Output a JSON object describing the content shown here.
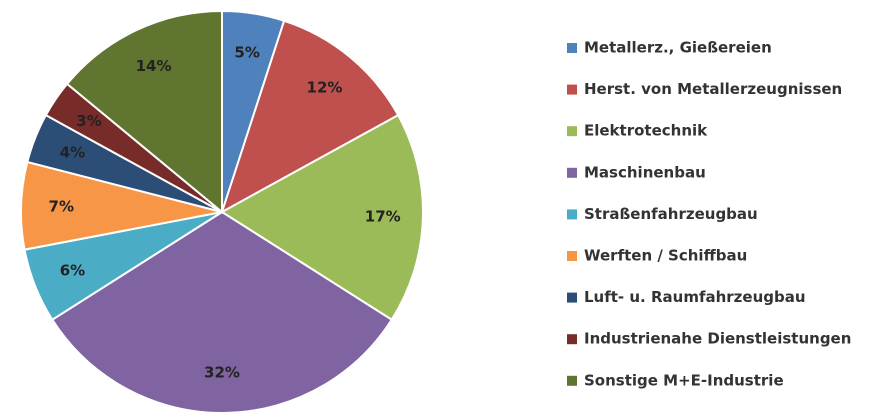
{
  "chart_data": {
    "type": "pie",
    "categories": [
      "Metallerz., Gießereien",
      "Herst. von Metallerzeugnissen",
      "Elektrotechnik",
      "Maschinenbau",
      "Straßenfahrzeugbau",
      "Werften / Schiffbau",
      "Luft- u. Raumfahrzeugbau",
      "Industrienahe Dienstleistungen",
      "Sonstige M+E-Industrie"
    ],
    "values": [
      5,
      12,
      17,
      32,
      6,
      7,
      4,
      3,
      14
    ],
    "value_labels": [
      "5%",
      "12%",
      "17%",
      "32%",
      "6%",
      "7%",
      "4%",
      "3%",
      "14%"
    ],
    "colors": [
      "#4f81bd",
      "#c0504d",
      "#9bbb59",
      "#8064a2",
      "#4bacc6",
      "#f79646",
      "#2c4d75",
      "#772c2a",
      "#5f7530"
    ],
    "legend": "right"
  }
}
